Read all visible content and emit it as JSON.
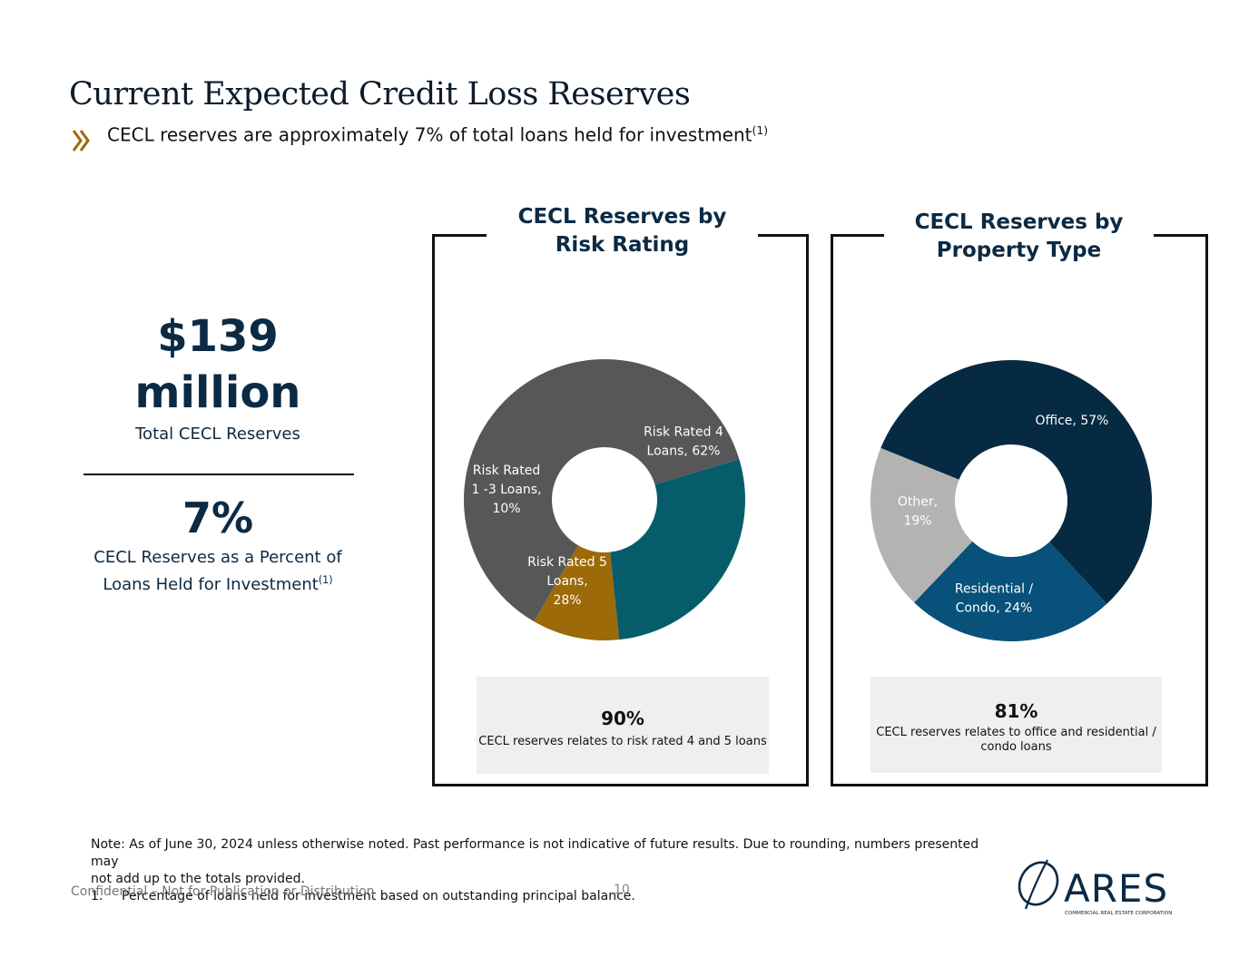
{
  "title": "Current Expected Credit Loss Reserves",
  "subtitle": {
    "text": "CECL reserves are approximately 7% of total loans held for investment",
    "sup": "(1)"
  },
  "kpi": {
    "total_line1": "$139",
    "total_line2": "million",
    "total_label": "Total CECL Reserves",
    "percent": "7%",
    "percent_label_line1": "CECL Reserves as a Percent of",
    "percent_label_line2": "Loans Held for Investment",
    "percent_label_sup": "(1)"
  },
  "chart_data": [
    {
      "type": "pie",
      "donut": true,
      "title_line1": "CECL Reserves by",
      "title_line2": "Risk Rating",
      "categories": [
        "Risk Rated 4 Loans",
        "Risk Rated 5 Loans",
        "Risk Rated 1 -3 Loans"
      ],
      "values": [
        62,
        28,
        10
      ],
      "unit": "%",
      "colors": [
        "#575757",
        "#075c6b",
        "#9c6a08"
      ],
      "label_lines": [
        [
          "Risk Rated 4",
          "Loans, 62%"
        ],
        [
          "Risk Rated 5",
          "Loans,",
          "28%"
        ],
        [
          "Risk Rated",
          "1 -3 Loans,",
          "10%"
        ]
      ],
      "note_value": "90%",
      "note_text": "CECL reserves relates to risk rated 4 and 5 loans"
    },
    {
      "type": "pie",
      "donut": true,
      "title_line1": "CECL Reserves by",
      "title_line2": "Property Type",
      "categories": [
        "Office",
        "Residential / Condo",
        "Other"
      ],
      "values": [
        57,
        24,
        19
      ],
      "unit": "%",
      "colors": [
        "#062a42",
        "#07517a",
        "#b3b3b3"
      ],
      "label_lines": [
        [
          "Office, 57%"
        ],
        [
          "Residential /",
          "Condo, 24%"
        ],
        [
          "Other,",
          "19%"
        ]
      ],
      "note_value": "81%",
      "note_text_line1": "CECL reserves relates to office and residential /",
      "note_text_line2": "condo loans"
    }
  ],
  "footnote": {
    "line1": "Note: As of June 30, 2024 unless otherwise noted. Past performance is not indicative of future results. Due to rounding, numbers presented may",
    "line2": "not add up to the totals provided.",
    "item_num": "1.",
    "item_text": "Percentage of loans held for investment based on outstanding principal balance."
  },
  "confidential": "Confidential – Not for Publication or Distribution",
  "page_number": "10",
  "logo": {
    "name": "ARES",
    "tagline": "COMMERCIAL REAL ESTATE CORPORATION"
  },
  "colors": {
    "navy": "#0b2a44",
    "gold": "#9c6a08"
  }
}
